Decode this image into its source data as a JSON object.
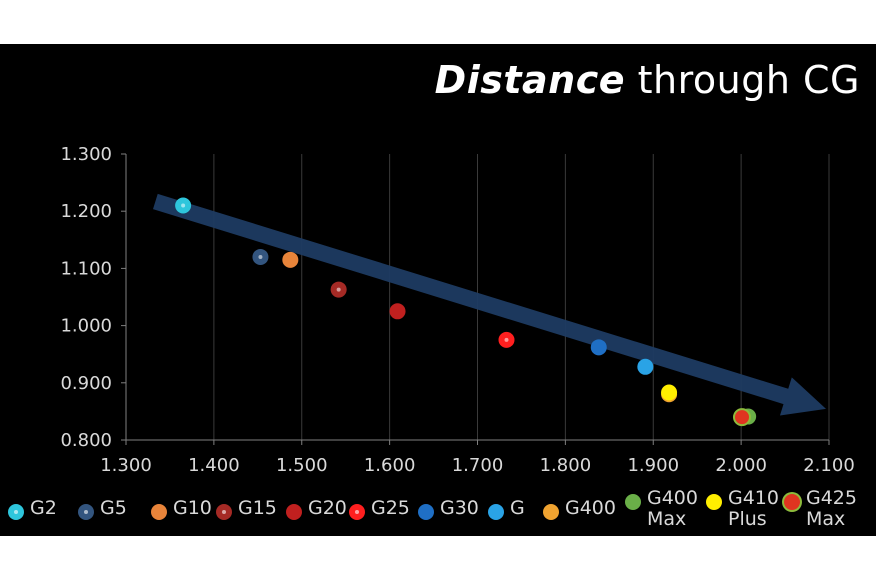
{
  "title": {
    "emphasis": "Distance",
    "rest": "through CG"
  },
  "chart_data": {
    "type": "scatter",
    "xlim": [
      1.3,
      2.1
    ],
    "ylim": [
      0.8,
      1.3
    ],
    "x_ticks": [
      "1.300",
      "1.400",
      "1.500",
      "1.600",
      "1.700",
      "1.800",
      "1.900",
      "2.000",
      "2.100"
    ],
    "y_ticks": [
      "1.300",
      "1.200",
      "1.100",
      "1.000",
      "0.900",
      "0.800"
    ],
    "grid": "vertical",
    "legend_position": "bottom",
    "trend_arrow": {
      "from": [
        1.33,
        1.21
      ],
      "to": [
        2.1,
        0.83
      ]
    },
    "series": [
      {
        "name": "G2",
        "color": "#2ec6dc",
        "x": 1.365,
        "y": 1.21,
        "marker": "dot"
      },
      {
        "name": "G5",
        "color": "#33557f",
        "x": 1.453,
        "y": 1.12,
        "marker": "dot"
      },
      {
        "name": "G10",
        "color": "#e8843a",
        "x": 1.487,
        "y": 1.115,
        "marker": "plain"
      },
      {
        "name": "G15",
        "color": "#a52a25",
        "x": 1.542,
        "y": 1.063,
        "marker": "dot"
      },
      {
        "name": "G20",
        "color": "#c0201f",
        "x": 1.609,
        "y": 1.025,
        "marker": "plain"
      },
      {
        "name": "G25",
        "color": "#ff1f1f",
        "x": 1.733,
        "y": 0.975,
        "marker": "dot"
      },
      {
        "name": "G30",
        "color": "#1f6fc5",
        "x": 1.838,
        "y": 0.962,
        "marker": "plain"
      },
      {
        "name": "G",
        "color": "#2aa3e6",
        "x": 1.891,
        "y": 0.928,
        "marker": "plain"
      },
      {
        "name": "G400",
        "color": "#f0a330",
        "x": 1.918,
        "y": 0.88,
        "marker": "plain"
      },
      {
        "name": "G400\nMax",
        "color": "#6aaf48",
        "x": 2.008,
        "y": 0.841,
        "marker": "plain"
      },
      {
        "name": "G410\nPlus",
        "color": "#ffee00",
        "x": 1.918,
        "y": 0.883,
        "marker": "plain"
      },
      {
        "name": "G425\nMax",
        "color": "#e03420",
        "ring": "#8dbb3c",
        "x": 2.001,
        "y": 0.84,
        "marker": "ring"
      }
    ]
  }
}
